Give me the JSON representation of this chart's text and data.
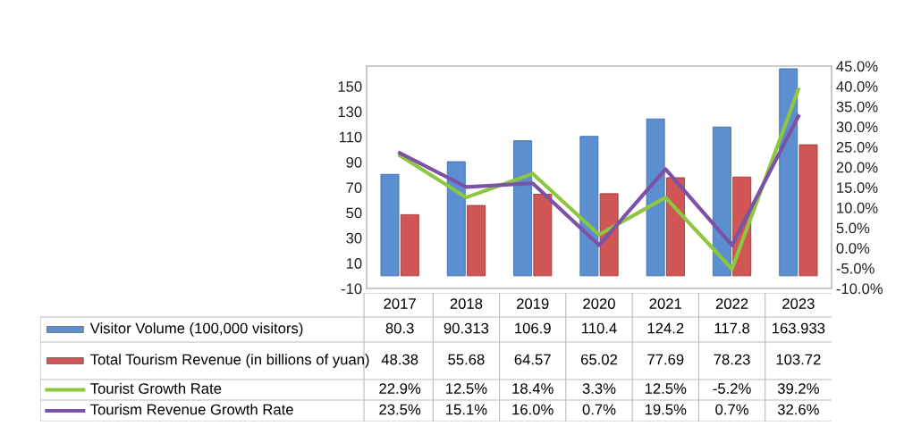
{
  "chart_data": {
    "type": "bar",
    "categories": [
      "2017",
      "2018",
      "2019",
      "2020",
      "2021",
      "2022",
      "2023"
    ],
    "series": [
      {
        "name": "Visitor Volume (100,000 visitors)",
        "color": "#5b8fd0",
        "values": [
          80.3,
          90.313,
          106.9,
          110.4,
          124.2,
          117.8,
          163.933
        ],
        "value_labels": [
          "80.3",
          "90.313",
          "106.9",
          "110.4",
          "124.2",
          "117.8",
          "163.933"
        ]
      },
      {
        "name": "Total Tourism Revenue (in billions of yuan)",
        "color": "#d05555",
        "values": [
          48.38,
          55.68,
          64.57,
          65.02,
          77.69,
          78.23,
          103.72
        ],
        "value_labels": [
          "48.38",
          "55.68",
          "64.57",
          "65.02",
          "77.69",
          "78.23",
          "103.72"
        ]
      },
      {
        "name": "Tourist Growth Rate",
        "type": "line",
        "axis": "y2",
        "color": "#8dc63f",
        "values": [
          22.9,
          12.5,
          18.4,
          3.3,
          12.5,
          -5.2,
          39.2
        ],
        "value_labels": [
          "22.9%",
          "12.5%",
          "18.4%",
          "3.3%",
          "12.5%",
          "-5.2%",
          "39.2%"
        ]
      },
      {
        "name": "Tourism Revenue Growth Rate",
        "type": "line",
        "axis": "y2",
        "color": "#7b52a6",
        "values": [
          23.5,
          15.1,
          16.0,
          0.7,
          19.5,
          0.7,
          32.6
        ],
        "value_labels": [
          "23.5%",
          "15.1%",
          "16.0%",
          "0.7%",
          "19.5%",
          "0.7%",
          "32.6%"
        ]
      }
    ],
    "ylim": [
      -10,
      166
    ],
    "yticks": [
      -10,
      10,
      30,
      50,
      70,
      90,
      110,
      130,
      150
    ],
    "y2lim": [
      -10,
      45
    ],
    "y2ticks": [
      {
        "value": -10,
        "label": "-10.0%"
      },
      {
        "value": -5,
        "label": "-5.0%"
      },
      {
        "value": 0,
        "label": "0.0%"
      },
      {
        "value": 5,
        "label": "5.0%"
      },
      {
        "value": 10,
        "label": "10.0%"
      },
      {
        "value": 15,
        "label": "15.0%"
      },
      {
        "value": 20,
        "label": "20.0%"
      },
      {
        "value": 25,
        "label": "25.0%"
      },
      {
        "value": 30,
        "label": "30.0%"
      },
      {
        "value": 35,
        "label": "35.0%"
      },
      {
        "value": 40,
        "label": "40.0%"
      },
      {
        "value": 45,
        "label": "45.0%"
      }
    ],
    "legend": "bottom",
    "grid": false,
    "marker": "none",
    "line_style": "solid"
  }
}
